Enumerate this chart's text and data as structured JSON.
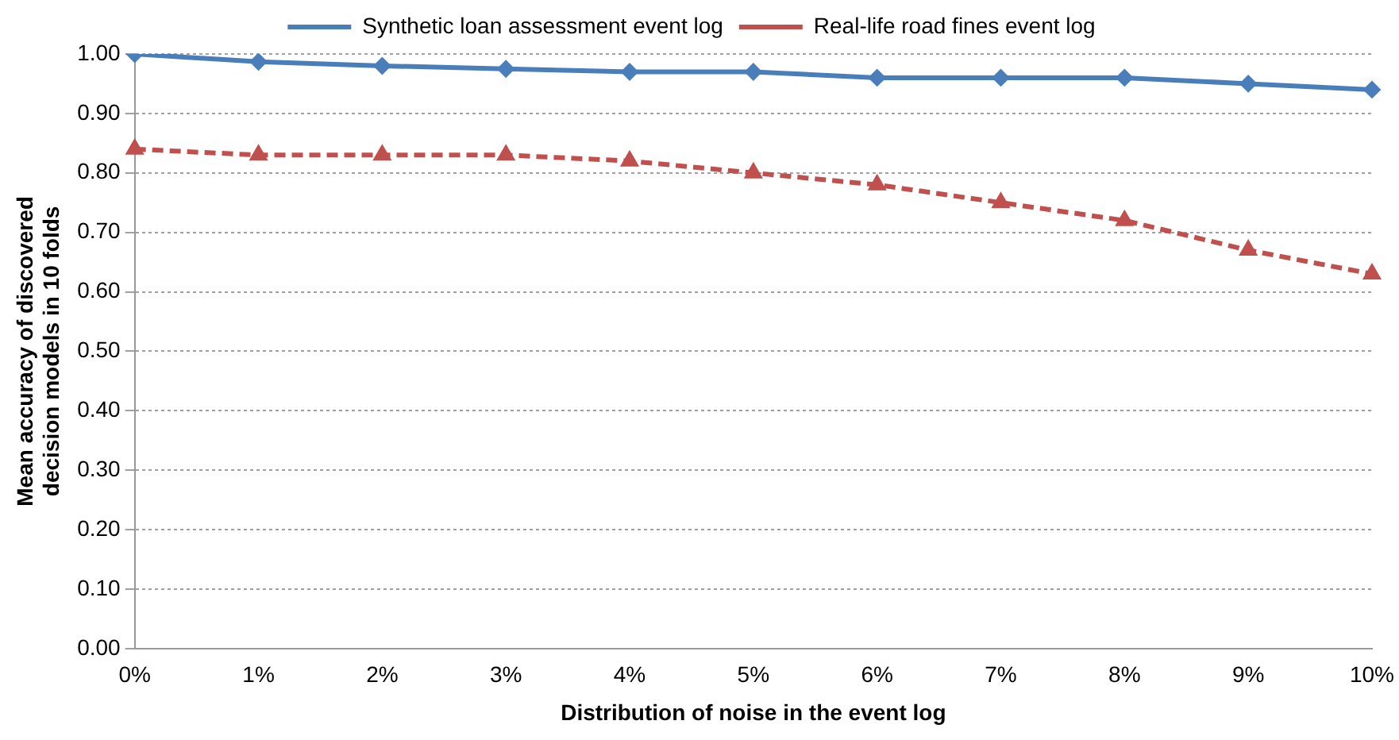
{
  "chart_data": {
    "type": "line",
    "xlabel": "Distribution of noise in the event log",
    "ylabel": "Mean accuracy of discovered decision models in 10 folds",
    "categories": [
      "0%",
      "1%",
      "2%",
      "3%",
      "4%",
      "5%",
      "6%",
      "7%",
      "8%",
      "9%",
      "10%"
    ],
    "series": [
      {
        "name": "Synthetic loan assessment event log",
        "color": "#4a7ebb",
        "marker": "diamond",
        "line_style": "solid",
        "values": [
          1.0,
          0.987,
          0.98,
          0.975,
          0.97,
          0.97,
          0.96,
          0.96,
          0.96,
          0.95,
          0.94
        ]
      },
      {
        "name": "Real-life road fines event log",
        "color": "#c0504d",
        "marker": "triangle",
        "line_style": "dashed",
        "values": [
          0.84,
          0.83,
          0.83,
          0.83,
          0.82,
          0.8,
          0.78,
          0.75,
          0.72,
          0.67,
          0.63
        ]
      }
    ],
    "ylim": [
      0,
      1
    ],
    "yticks": [
      {
        "value": 0,
        "label": "0.00"
      },
      {
        "value": 0.1,
        "label": "0.10"
      },
      {
        "value": 0.2,
        "label": "0.20"
      },
      {
        "value": 0.3,
        "label": "0.30"
      },
      {
        "value": 0.4,
        "label": "0.40"
      },
      {
        "value": 0.5,
        "label": "0.50"
      },
      {
        "value": 0.6,
        "label": "0.60"
      },
      {
        "value": 0.7,
        "label": "0.70"
      },
      {
        "value": 0.8,
        "label": "0.80"
      },
      {
        "value": 0.9,
        "label": "0.90"
      },
      {
        "value": 1,
        "label": "1.00"
      }
    ],
    "grid": "y",
    "legend": "top"
  }
}
